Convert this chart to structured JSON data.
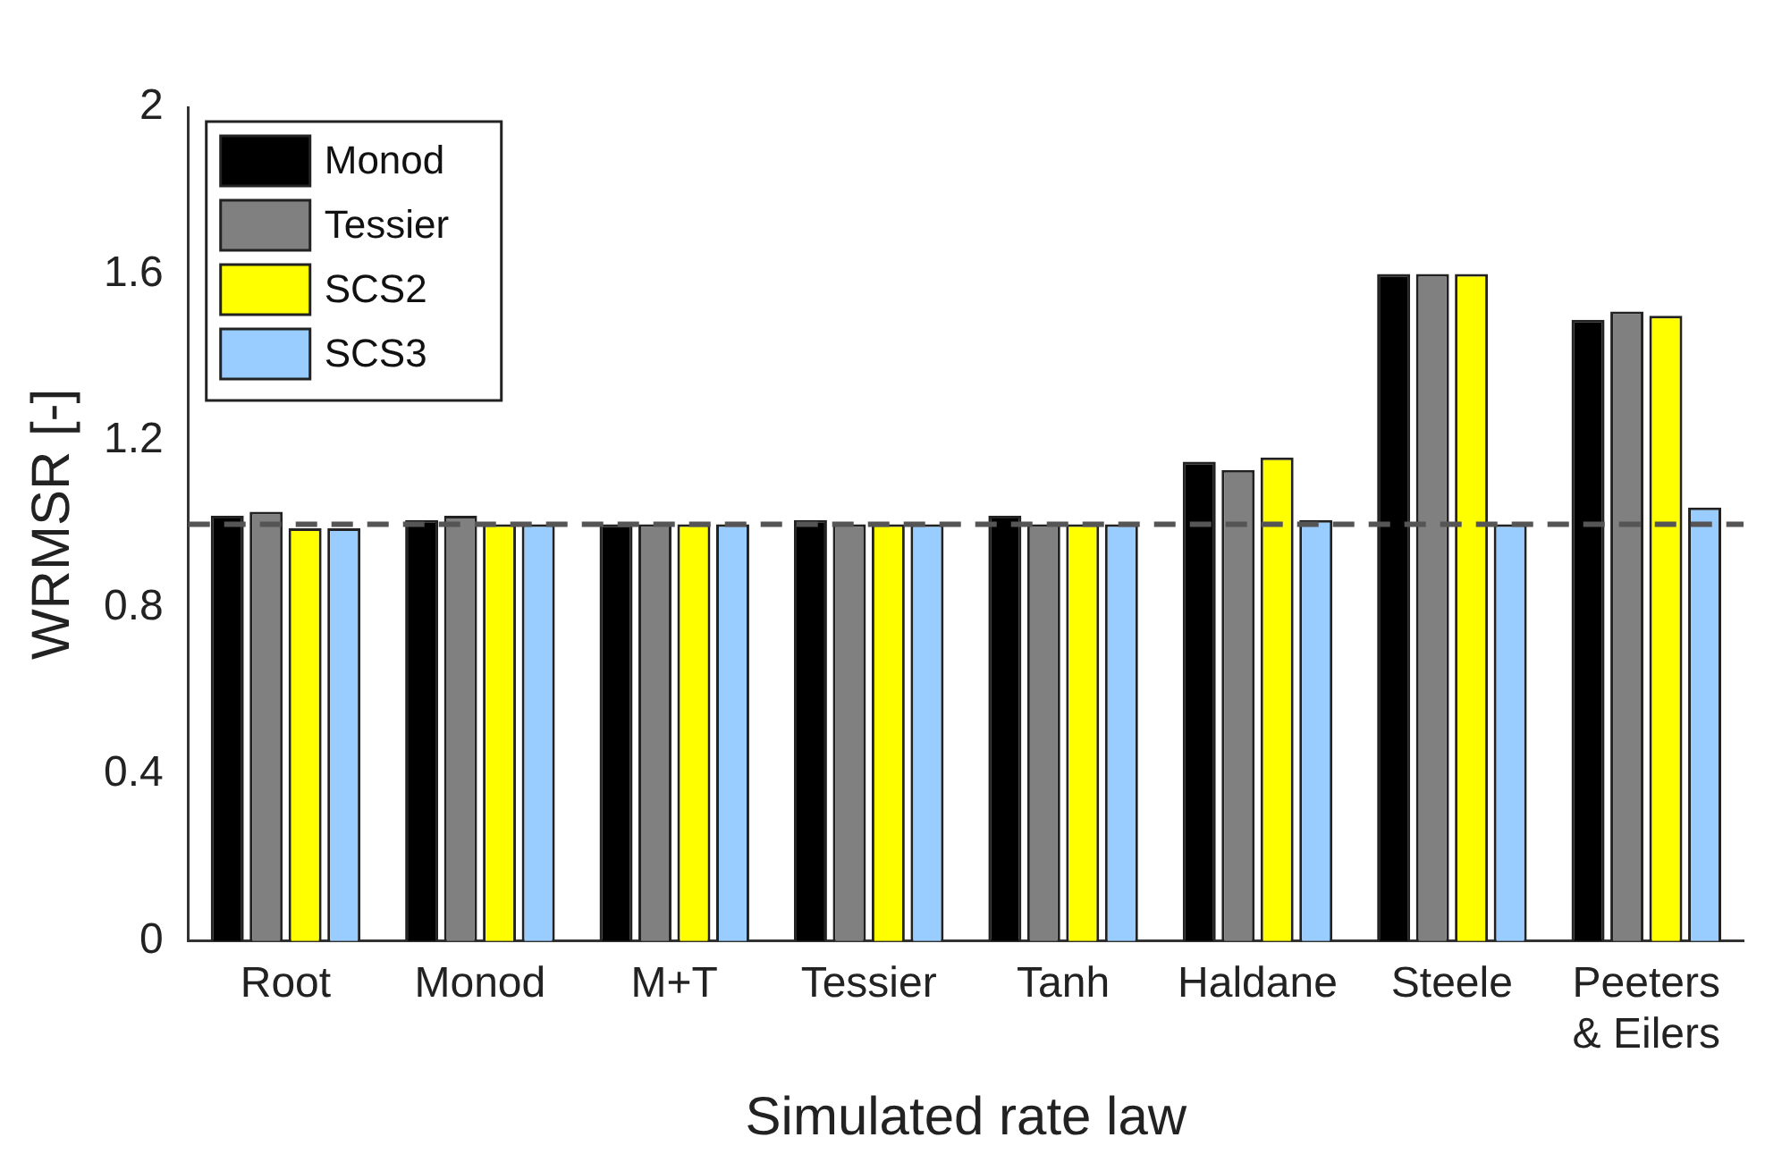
{
  "chart_data": {
    "type": "bar",
    "xlabel": "Simulated rate law",
    "ylabel": "WRMSR [-]",
    "categories": [
      "Root",
      "Monod",
      "M+T",
      "Tessier",
      "Tanh",
      "Haldane",
      "Steele",
      "Peeters & Eilers"
    ],
    "series": [
      {
        "name": "Monod",
        "color": "#000000",
        "values": [
          1.02,
          1.01,
          1.0,
          1.01,
          1.02,
          1.15,
          1.6,
          1.49
        ]
      },
      {
        "name": "Tessier",
        "color": "#808080",
        "values": [
          1.03,
          1.02,
          1.0,
          1.0,
          1.0,
          1.13,
          1.6,
          1.51
        ]
      },
      {
        "name": "SCS2",
        "color": "#ffff00",
        "values": [
          0.99,
          1.0,
          1.0,
          1.0,
          1.0,
          1.16,
          1.6,
          1.5
        ]
      },
      {
        "name": "SCS3",
        "color": "#99ccff",
        "values": [
          0.99,
          1.0,
          1.0,
          1.0,
          1.0,
          1.01,
          1.0,
          1.04
        ]
      }
    ],
    "ylim": [
      0,
      2
    ],
    "yticks": [
      0,
      0.4,
      0.8,
      1.2,
      1.6,
      2
    ],
    "ref_lines": [
      {
        "axis": "y",
        "value": 1,
        "color": "#555555",
        "line_style": "dashed"
      }
    ],
    "grid": false,
    "legend": "top left"
  }
}
